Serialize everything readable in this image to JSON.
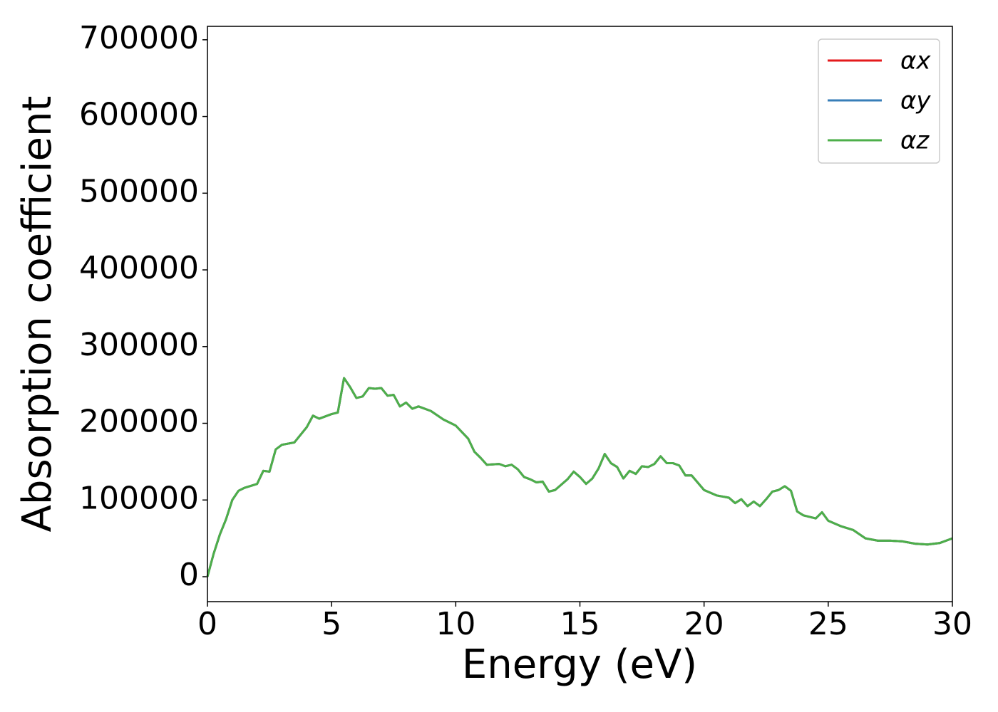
{
  "chart_data": {
    "type": "line",
    "xlabel": "Energy (eV)",
    "ylabel": "Absorption coefficient",
    "x": [
      0,
      0.25,
      0.5,
      0.75,
      1,
      1.25,
      1.5,
      2,
      2.25,
      2.5,
      2.75,
      3,
      3.5,
      4,
      4.25,
      4.5,
      5,
      5.25,
      5.5,
      5.75,
      6,
      6.25,
      6.5,
      6.75,
      7,
      7.25,
      7.5,
      7.75,
      8,
      8.25,
      8.5,
      9,
      9.5,
      10,
      10.5,
      10.75,
      11,
      11.25,
      11.75,
      12,
      12.25,
      12.5,
      12.75,
      13,
      13.25,
      13.5,
      13.75,
      14,
      14.5,
      14.75,
      15,
      15.25,
      15.5,
      15.75,
      16,
      16.25,
      16.5,
      16.75,
      17,
      17.25,
      17.5,
      17.75,
      18,
      18.25,
      18.5,
      18.75,
      19,
      19.25,
      19.5,
      20,
      20.5,
      21,
      21.25,
      21.5,
      21.75,
      22,
      22.25,
      22.5,
      22.75,
      23,
      23.25,
      23.5,
      23.75,
      24,
      24.5,
      24.75,
      25,
      25.5,
      26,
      26.5,
      27,
      27.5,
      28,
      28.5,
      29,
      29.5,
      30
    ],
    "series": [
      {
        "name": "αx",
        "color": "#e41a1c",
        "values": [
          0,
          30000,
          55000,
          75000,
          100000,
          112000,
          116000,
          121000,
          138000,
          137000,
          166000,
          172000,
          175000,
          195000,
          210000,
          206000,
          212000,
          214000,
          259000,
          247000,
          233000,
          235000,
          246000,
          245000,
          246000,
          236000,
          237000,
          222000,
          227000,
          219000,
          222000,
          216000,
          205000,
          197000,
          180000,
          163000,
          155000,
          146000,
          147000,
          144000,
          146000,
          140000,
          130000,
          127000,
          123000,
          124000,
          111000,
          113000,
          127000,
          137000,
          130000,
          121000,
          128000,
          141000,
          160000,
          148000,
          143000,
          128000,
          138000,
          134000,
          144000,
          143000,
          147000,
          157000,
          148000,
          148000,
          145000,
          132000,
          132000,
          113000,
          106000,
          103000,
          96000,
          101000,
          92000,
          98000,
          92000,
          101000,
          111000,
          113000,
          118000,
          112000,
          85000,
          80000,
          76000,
          84000,
          73000,
          66000,
          61000,
          50000,
          47000,
          47000,
          46000,
          43000,
          42000,
          44000,
          50000
        ]
      },
      {
        "name": "αy",
        "color": "#377eb8",
        "values": [
          0,
          30000,
          55000,
          75000,
          100000,
          112000,
          116000,
          121000,
          138000,
          137000,
          166000,
          172000,
          175000,
          195000,
          210000,
          206000,
          212000,
          214000,
          259000,
          247000,
          233000,
          235000,
          246000,
          245000,
          246000,
          236000,
          237000,
          222000,
          227000,
          219000,
          222000,
          216000,
          205000,
          197000,
          180000,
          163000,
          155000,
          146000,
          147000,
          144000,
          146000,
          140000,
          130000,
          127000,
          123000,
          124000,
          111000,
          113000,
          127000,
          137000,
          130000,
          121000,
          128000,
          141000,
          160000,
          148000,
          143000,
          128000,
          138000,
          134000,
          144000,
          143000,
          147000,
          157000,
          148000,
          148000,
          145000,
          132000,
          132000,
          113000,
          106000,
          103000,
          96000,
          101000,
          92000,
          98000,
          92000,
          101000,
          111000,
          113000,
          118000,
          112000,
          85000,
          80000,
          76000,
          84000,
          73000,
          66000,
          61000,
          50000,
          47000,
          47000,
          46000,
          43000,
          42000,
          44000,
          50000
        ]
      },
      {
        "name": "αz",
        "color": "#4daf4a",
        "values": [
          0,
          30000,
          55000,
          75000,
          100000,
          112000,
          116000,
          121000,
          138000,
          137000,
          166000,
          172000,
          175000,
          195000,
          210000,
          206000,
          212000,
          214000,
          259000,
          247000,
          233000,
          235000,
          246000,
          245000,
          246000,
          236000,
          237000,
          222000,
          227000,
          219000,
          222000,
          216000,
          205000,
          197000,
          180000,
          163000,
          155000,
          146000,
          147000,
          144000,
          146000,
          140000,
          130000,
          127000,
          123000,
          124000,
          111000,
          113000,
          127000,
          137000,
          130000,
          121000,
          128000,
          141000,
          160000,
          148000,
          143000,
          128000,
          138000,
          134000,
          144000,
          143000,
          147000,
          157000,
          148000,
          148000,
          145000,
          132000,
          132000,
          113000,
          106000,
          103000,
          96000,
          101000,
          92000,
          98000,
          92000,
          101000,
          111000,
          113000,
          118000,
          112000,
          85000,
          80000,
          76000,
          84000,
          73000,
          66000,
          61000,
          50000,
          47000,
          47000,
          46000,
          43000,
          42000,
          44000,
          50000
        ]
      }
    ],
    "xlim": [
      0,
      30
    ],
    "xticks": [
      0,
      5,
      10,
      15,
      20,
      25,
      30
    ],
    "ylim": [
      -32500,
      717500
    ],
    "yticks": [
      0,
      100000,
      200000,
      300000,
      400000,
      500000,
      600000,
      700000
    ],
    "grid": false,
    "legend": "upper right"
  }
}
